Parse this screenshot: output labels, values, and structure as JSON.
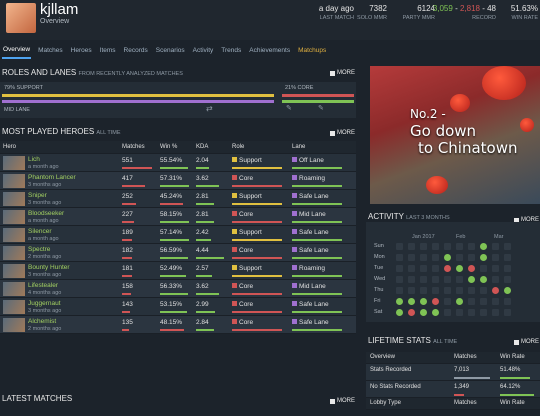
{
  "header": {
    "username": "kjllam",
    "subtitle": "Overview",
    "stats": [
      {
        "value": "a day ago",
        "label": "LAST MATCH"
      },
      {
        "value": "7382",
        "label": "SOLO MMR"
      },
      {
        "value": "6124",
        "label": "PARTY MMR"
      },
      {
        "value_wins": "3,059",
        "value_losses": "2,818",
        "value_abandons": "48",
        "label": "RECORD"
      },
      {
        "value": "51.63%",
        "label": "WIN RATE"
      }
    ]
  },
  "nav": {
    "tabs": [
      "Overview",
      "Matches",
      "Heroes",
      "Items",
      "Records",
      "Scenarios",
      "Activity",
      "Trends",
      "Achievements",
      "Matchups"
    ],
    "active": "Overview"
  },
  "roles": {
    "title": "ROLES AND LANES",
    "subtitle": "FROM RECENTLY ANALYZED MATCHES",
    "more": "MORE",
    "support_label": "79% SUPPORT",
    "core_label": "21% CORE",
    "lane_label": "MID LANE"
  },
  "heroes": {
    "title": "MOST PLAYED HEROES",
    "subtitle": "ALL TIME",
    "more": "MORE",
    "columns": [
      "Hero",
      "Matches",
      "Win %",
      "KDA",
      "Role",
      "Lane"
    ],
    "rows": [
      {
        "name": "Lich",
        "time": "a month ago",
        "matches": "551",
        "win": "55.54%",
        "kda": "2.04",
        "role": "Support",
        "lane": "Off Lane"
      },
      {
        "name": "Phantom Lancer",
        "time": "3 months ago",
        "matches": "417",
        "win": "57.31%",
        "kda": "3.62",
        "role": "Core",
        "lane": "Roaming"
      },
      {
        "name": "Sniper",
        "time": "3 months ago",
        "matches": "252",
        "win": "45.24%",
        "kda": "2.81",
        "role": "Support",
        "lane": "Safe Lane"
      },
      {
        "name": "Bloodseeker",
        "time": "a month ago",
        "matches": "227",
        "win": "58.15%",
        "kda": "2.81",
        "role": "Core",
        "lane": "Mid Lane"
      },
      {
        "name": "Silencer",
        "time": "a month ago",
        "matches": "189",
        "win": "57.14%",
        "kda": "2.42",
        "role": "Support",
        "lane": "Safe Lane"
      },
      {
        "name": "Spectre",
        "time": "2 months ago",
        "matches": "182",
        "win": "56.59%",
        "kda": "4.44",
        "role": "Core",
        "lane": "Safe Lane"
      },
      {
        "name": "Bounty Hunter",
        "time": "3 months ago",
        "matches": "181",
        "win": "52.49%",
        "kda": "2.57",
        "role": "Support",
        "lane": "Roaming"
      },
      {
        "name": "Lifestealer",
        "time": "4 months ago",
        "matches": "158",
        "win": "56.33%",
        "kda": "3.62",
        "role": "Core",
        "lane": "Mid Lane"
      },
      {
        "name": "Juggernaut",
        "time": "3 months ago",
        "matches": "143",
        "win": "53.15%",
        "kda": "2.99",
        "role": "Core",
        "lane": "Safe Lane"
      },
      {
        "name": "Alchemist",
        "time": "2 months ago",
        "matches": "135",
        "win": "48.15%",
        "kda": "2.84",
        "role": "Core",
        "lane": "Safe Lane"
      }
    ]
  },
  "latest": {
    "title": "LATEST MATCHES",
    "more": "MORE"
  },
  "promo": {
    "line1": "No.2 -",
    "line2": "Go down",
    "line3": "to Chinatown"
  },
  "activity": {
    "title": "ACTIVITY",
    "subtitle": "LAST 3 MONTHS",
    "more": "MORE",
    "months": [
      "Jan 2017",
      "Feb",
      "Mar"
    ],
    "days": [
      "Sun",
      "Mon",
      "Tue",
      "Wed",
      "Thu",
      "Fri",
      "Sat"
    ]
  },
  "lifetime": {
    "title": "LIFETIME STATS",
    "subtitle": "ALL TIME",
    "more": "MORE",
    "columns": [
      "Overview",
      "Matches",
      "Win Rate"
    ],
    "rows": [
      {
        "label": "Stats Recorded",
        "matches": "7,013",
        "win": "51.48%"
      },
      {
        "label": "No Stats Recorded",
        "matches": "1,349",
        "win": "64.12%"
      }
    ],
    "footer": [
      "Lobby Type",
      "Matches",
      "Win Rate"
    ]
  },
  "colors": {
    "accent": "#4ea3f0",
    "win": "#7fc355",
    "loss": "#d05555",
    "matchups": "#e0b040",
    "support": "#e0c040",
    "core": "#d05555"
  }
}
